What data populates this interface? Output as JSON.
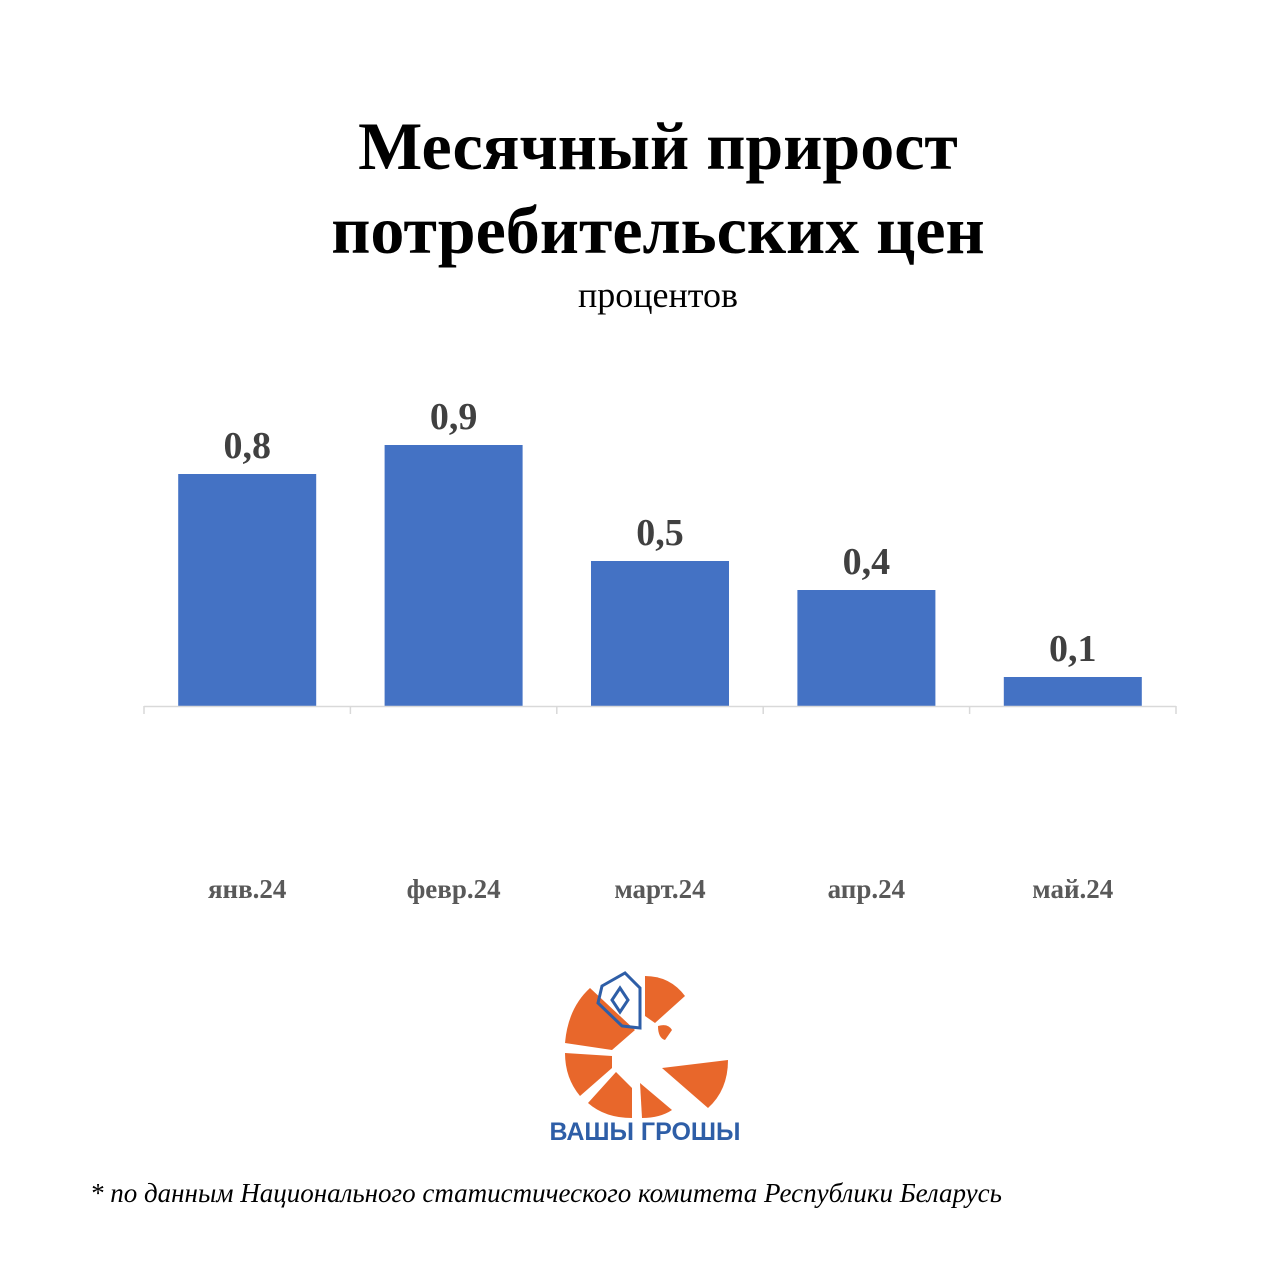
{
  "chart_data": {
    "type": "bar",
    "title": "Месячный прирост потребительских цен",
    "title_lines": [
      "Месячный прирост",
      "потребительских цен"
    ],
    "subtitle": "процентов",
    "categories": [
      "янв.24",
      "февр.24",
      "март.24",
      "апр.24",
      "май.24"
    ],
    "values": [
      0.8,
      0.9,
      0.5,
      0.4,
      0.1
    ],
    "data_labels": [
      "0,8",
      "0,9",
      "0,5",
      "0,4",
      "0,1"
    ],
    "xlabel": "",
    "ylabel": "",
    "ylim": [
      0,
      0.9
    ],
    "grid": false,
    "bar_color": "#4472c4"
  },
  "logo": {
    "text": "ВАШЫ ГРОШЫ",
    "color_orange": "#e8672b",
    "color_blue": "#2e5ea7"
  },
  "footnote": "* по данным Национального статистического комитета Республики Беларусь"
}
